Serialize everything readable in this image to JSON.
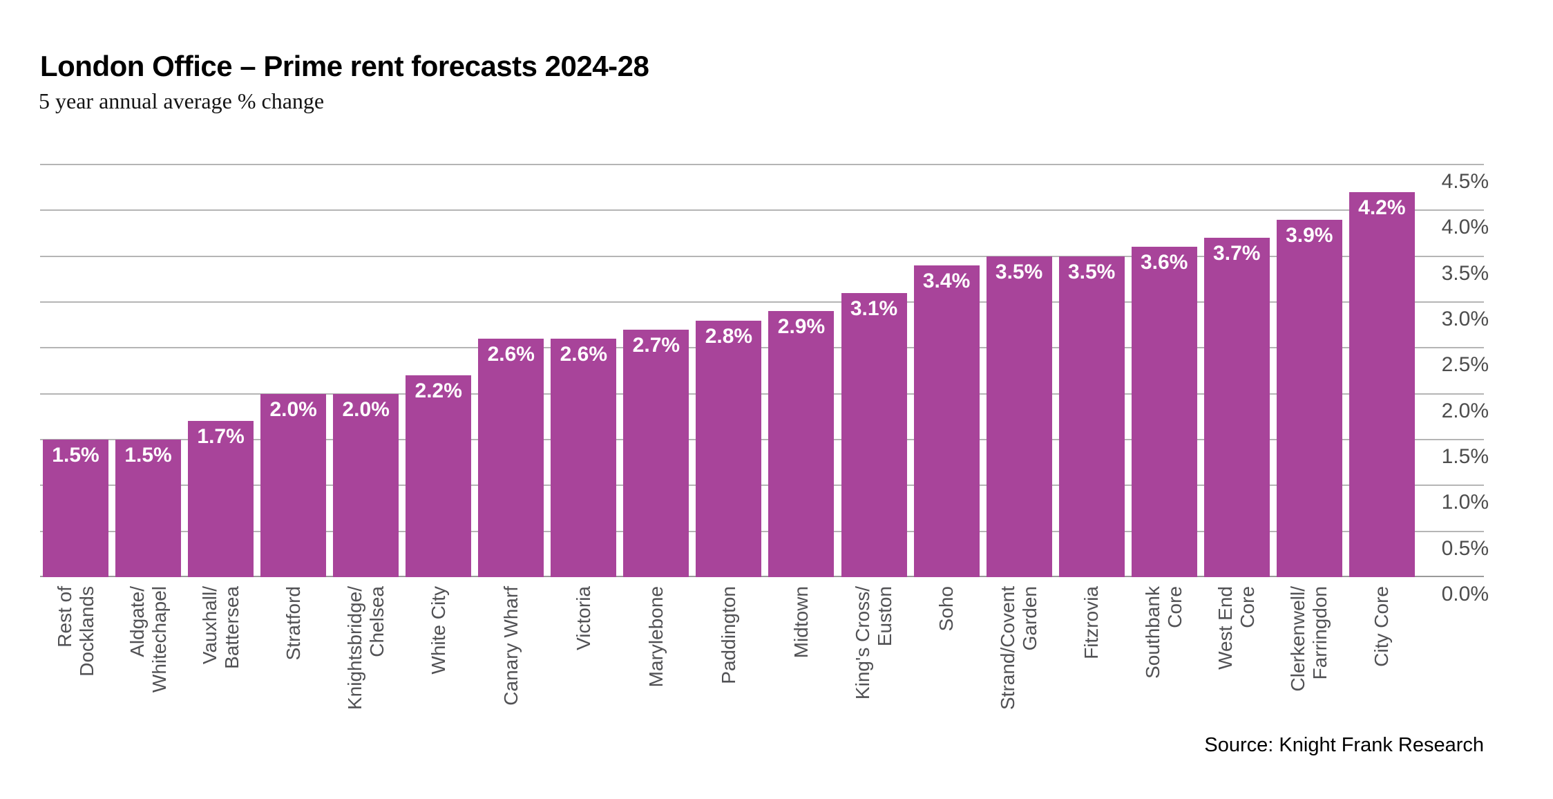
{
  "header": {
    "title": "London Office – Prime rent forecasts 2024-28",
    "subtitle": "5 year annual average % change"
  },
  "source": {
    "text": "Source: Knight Frank Research"
  },
  "chart_data": {
    "type": "bar",
    "title": "London Office – Prime rent forecasts 2024-28",
    "subtitle": "5 year annual average % change",
    "categories": [
      "Rest of\nDocklands",
      "Aldgate/\nWhitechapel",
      "Vauxhall/\nBattersea",
      "Stratford",
      "Knightsbridge/\nChelsea",
      "White City",
      "Canary Wharf",
      "Victoria",
      "Marylebone",
      "Paddington",
      "Midtown",
      "King's Cross/\nEuston",
      "Soho",
      "Strand/Covent\nGarden",
      "Fitzrovia",
      "Southbank\nCore",
      "West End\nCore",
      "Clerkenwell/\nFarringdon",
      "City Core"
    ],
    "values": [
      1.5,
      1.5,
      1.7,
      2.0,
      2.0,
      2.2,
      2.6,
      2.6,
      2.7,
      2.8,
      2.9,
      3.1,
      3.4,
      3.5,
      3.5,
      3.6,
      3.7,
      3.9,
      4.2
    ],
    "bar_labels": [
      "1.5%",
      "1.5%",
      "1.7%",
      "2.0%",
      "2.0%",
      "2.2%",
      "2.6%",
      "2.6%",
      "2.7%",
      "2.8%",
      "2.9%",
      "3.1%",
      "3.4%",
      "3.5%",
      "3.5%",
      "3.6%",
      "3.7%",
      "3.9%",
      "4.2%"
    ],
    "xlabel": "",
    "ylabel": "",
    "ylim": [
      0.0,
      4.5
    ],
    "ytick_step": 0.5,
    "yticks": [
      {
        "value": 0.0,
        "label": "0.0%"
      },
      {
        "value": 0.5,
        "label": "0.5%"
      },
      {
        "value": 1.0,
        "label": "1.0%"
      },
      {
        "value": 1.5,
        "label": "1.5%"
      },
      {
        "value": 2.0,
        "label": "2.0%"
      },
      {
        "value": 2.5,
        "label": "2.5%"
      },
      {
        "value": 3.0,
        "label": "3.0%"
      },
      {
        "value": 3.5,
        "label": "3.5%"
      },
      {
        "value": 4.0,
        "label": "4.0%"
      },
      {
        "value": 4.5,
        "label": "4.5%"
      }
    ],
    "grid": true,
    "legend_position": "none",
    "y_axis_side": "right",
    "colors": {
      "bar": "#A8449A",
      "value_label": "#FFFFFF",
      "gridline": "#B5B5B5",
      "axis_line": "#9A9A9A",
      "tick_label": "#4D4D4D",
      "category_label": "#515154",
      "background": "#FFFFFF"
    }
  }
}
